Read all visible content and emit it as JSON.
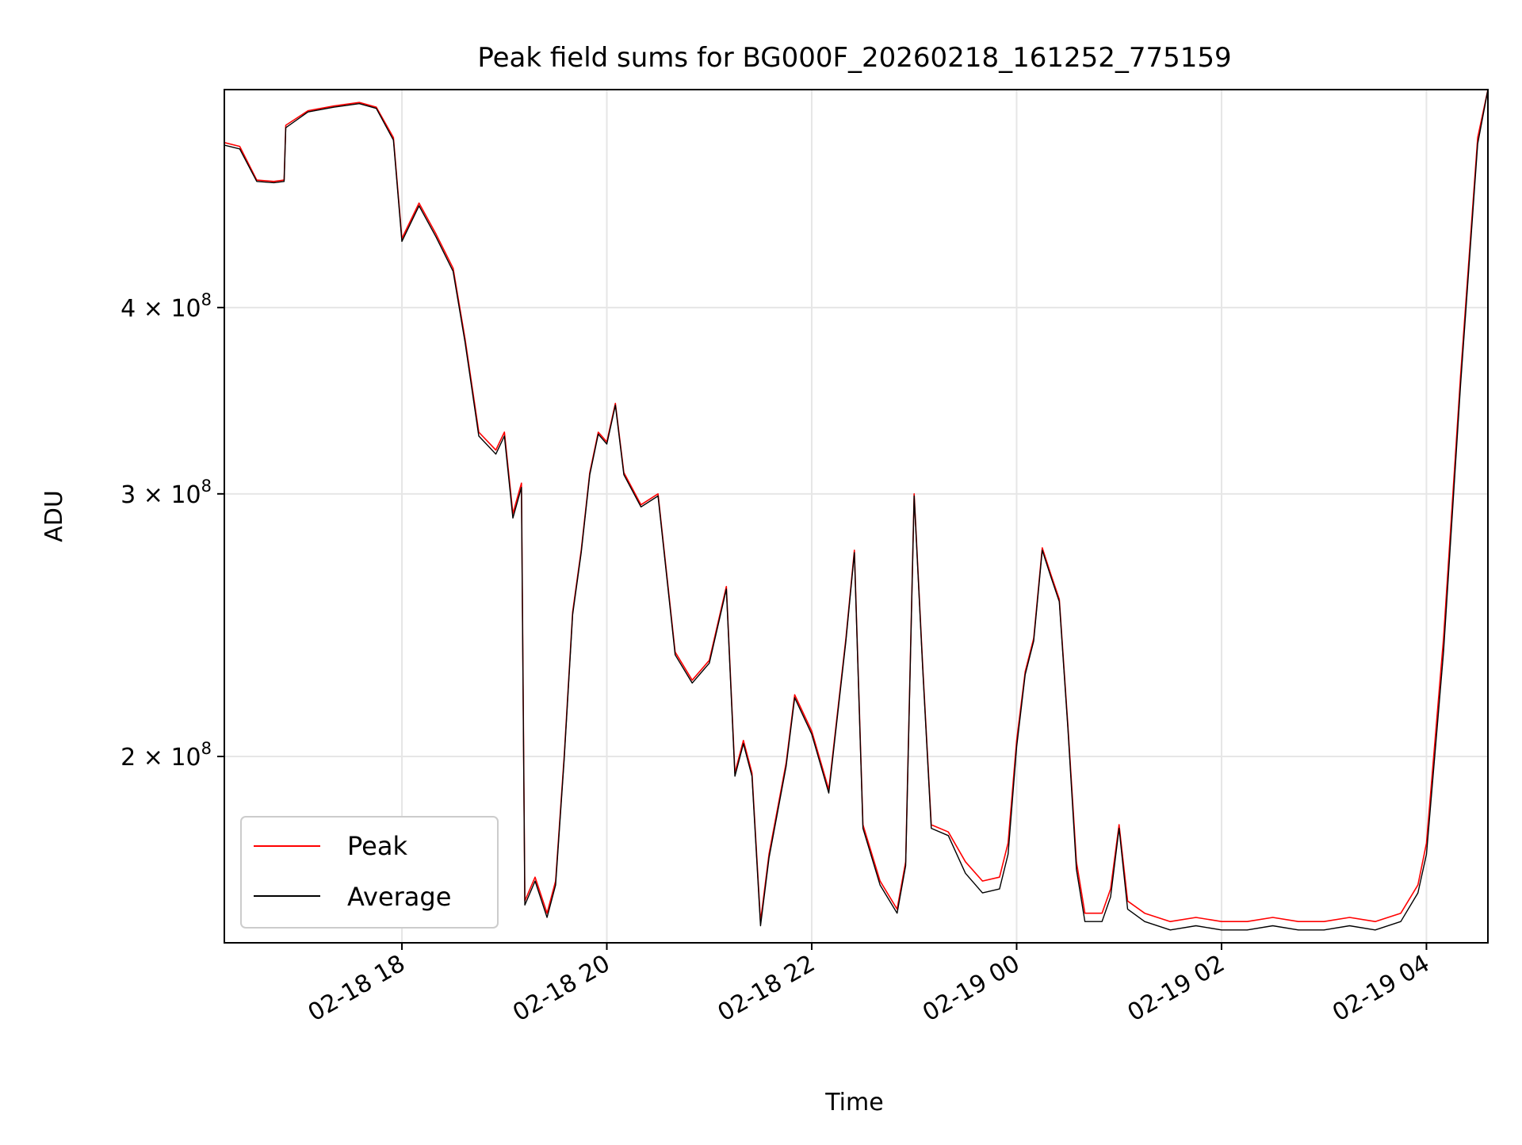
{
  "chart_data": {
    "type": "line",
    "title": "Peak field sums for BG000F_20260218_161252_775159",
    "xlabel": "Time",
    "ylabel": "ADU",
    "y_scale": "log",
    "xlim": [
      "2026-02-18 16:16",
      "2026-02-19 04:36"
    ],
    "ylim": [
      150000000,
      560000000
    ],
    "x_ticks": [
      {
        "t": "2026-02-18 18:00",
        "label": "02-18 18"
      },
      {
        "t": "2026-02-18 20:00",
        "label": "02-18 20"
      },
      {
        "t": "2026-02-18 22:00",
        "label": "02-18 22"
      },
      {
        "t": "2026-02-19 00:00",
        "label": "02-19 00"
      },
      {
        "t": "2026-02-19 02:00",
        "label": "02-19 02"
      },
      {
        "t": "2026-02-19 04:00",
        "label": "02-19 04"
      }
    ],
    "y_ticks": [
      {
        "value": 200000000,
        "base": "2",
        "exp": "8"
      },
      {
        "value": 300000000,
        "base": "3",
        "exp": "8"
      },
      {
        "value": 400000000,
        "base": "4",
        "exp": "8"
      }
    ],
    "grid": true,
    "legend": {
      "placement": "lower-left"
    },
    "series": [
      {
        "name": "Peak",
        "color": "#ff0000",
        "points": [
          [
            "2026-02-18 16:16",
            516000000
          ],
          [
            "2026-02-18 16:25",
            513000000
          ],
          [
            "2026-02-18 16:35",
            487000000
          ],
          [
            "2026-02-18 16:45",
            486000000
          ],
          [
            "2026-02-18 16:51",
            487000000
          ],
          [
            "2026-02-18 16:52",
            530000000
          ],
          [
            "2026-02-18 17:05",
            542000000
          ],
          [
            "2026-02-18 17:20",
            546000000
          ],
          [
            "2026-02-18 17:35",
            549000000
          ],
          [
            "2026-02-18 17:45",
            545000000
          ],
          [
            "2026-02-18 17:55",
            520000000
          ],
          [
            "2026-02-18 18:00",
            445000000
          ],
          [
            "2026-02-18 18:10",
            470000000
          ],
          [
            "2026-02-18 18:20",
            448000000
          ],
          [
            "2026-02-18 18:30",
            425000000
          ],
          [
            "2026-02-18 18:37",
            381000000
          ],
          [
            "2026-02-18 18:45",
            330000000
          ],
          [
            "2026-02-18 18:55",
            321000000
          ],
          [
            "2026-02-18 19:00",
            330000000
          ],
          [
            "2026-02-18 19:05",
            291000000
          ],
          [
            "2026-02-18 19:10",
            305000000
          ],
          [
            "2026-02-18 19:12",
            160000000
          ],
          [
            "2026-02-18 19:18",
            166000000
          ],
          [
            "2026-02-18 19:25",
            157000000
          ],
          [
            "2026-02-18 19:30",
            165000000
          ],
          [
            "2026-02-18 19:35",
            200000000
          ],
          [
            "2026-02-18 19:40",
            250000000
          ],
          [
            "2026-02-18 19:45",
            275000000
          ],
          [
            "2026-02-18 19:50",
            310000000
          ],
          [
            "2026-02-18 19:55",
            330000000
          ],
          [
            "2026-02-18 20:00",
            325000000
          ],
          [
            "2026-02-18 20:05",
            345000000
          ],
          [
            "2026-02-18 20:10",
            310000000
          ],
          [
            "2026-02-18 20:20",
            295000000
          ],
          [
            "2026-02-18 20:30",
            300000000
          ],
          [
            "2026-02-18 20:40",
            235000000
          ],
          [
            "2026-02-18 20:50",
            225000000
          ],
          [
            "2026-02-18 21:00",
            232000000
          ],
          [
            "2026-02-18 21:10",
            260000000
          ],
          [
            "2026-02-18 21:15",
            195000000
          ],
          [
            "2026-02-18 21:20",
            205000000
          ],
          [
            "2026-02-18 21:25",
            195000000
          ],
          [
            "2026-02-18 21:30",
            155000000
          ],
          [
            "2026-02-18 21:35",
            172000000
          ],
          [
            "2026-02-18 21:45",
            198000000
          ],
          [
            "2026-02-18 21:50",
            220000000
          ],
          [
            "2026-02-18 22:00",
            208000000
          ],
          [
            "2026-02-18 22:10",
            190000000
          ],
          [
            "2026-02-18 22:20",
            240000000
          ],
          [
            "2026-02-18 22:25",
            275000000
          ],
          [
            "2026-02-18 22:30",
            180000000
          ],
          [
            "2026-02-18 22:40",
            165000000
          ],
          [
            "2026-02-18 22:50",
            158000000
          ],
          [
            "2026-02-18 22:55",
            170000000
          ],
          [
            "2026-02-18 23:00",
            300000000
          ],
          [
            "2026-02-18 23:05",
            230000000
          ],
          [
            "2026-02-18 23:10",
            180000000
          ],
          [
            "2026-02-18 23:20",
            178000000
          ],
          [
            "2026-02-18 23:30",
            170000000
          ],
          [
            "2026-02-18 23:40",
            165000000
          ],
          [
            "2026-02-18 23:50",
            166000000
          ],
          [
            "2026-02-18 23:55",
            175000000
          ],
          [
            "2026-02-19 00:00",
            205000000
          ],
          [
            "2026-02-19 00:05",
            228000000
          ],
          [
            "2026-02-19 00:10",
            240000000
          ],
          [
            "2026-02-19 00:15",
            276000000
          ],
          [
            "2026-02-19 00:20",
            265000000
          ],
          [
            "2026-02-19 00:25",
            255000000
          ],
          [
            "2026-02-19 00:30",
            210000000
          ],
          [
            "2026-02-19 00:35",
            170000000
          ],
          [
            "2026-02-19 00:40",
            157000000
          ],
          [
            "2026-02-19 00:50",
            157000000
          ],
          [
            "2026-02-19 00:55",
            163000000
          ],
          [
            "2026-02-19 01:00",
            180000000
          ],
          [
            "2026-02-19 01:05",
            160000000
          ],
          [
            "2026-02-19 01:15",
            157000000
          ],
          [
            "2026-02-19 01:30",
            155000000
          ],
          [
            "2026-02-19 01:45",
            156000000
          ],
          [
            "2026-02-19 02:00",
            155000000
          ],
          [
            "2026-02-19 02:15",
            155000000
          ],
          [
            "2026-02-19 02:30",
            156000000
          ],
          [
            "2026-02-19 02:45",
            155000000
          ],
          [
            "2026-02-19 03:00",
            155000000
          ],
          [
            "2026-02-19 03:15",
            156000000
          ],
          [
            "2026-02-19 03:30",
            155000000
          ],
          [
            "2026-02-19 03:45",
            157000000
          ],
          [
            "2026-02-19 03:55",
            164000000
          ],
          [
            "2026-02-19 04:00",
            175000000
          ],
          [
            "2026-02-19 04:10",
            240000000
          ],
          [
            "2026-02-19 04:20",
            360000000
          ],
          [
            "2026-02-19 04:30",
            520000000
          ],
          [
            "2026-02-19 04:36",
            560000000
          ]
        ]
      },
      {
        "name": "Average",
        "color": "#000000",
        "points": [
          [
            "2026-02-18 16:16",
            514000000
          ],
          [
            "2026-02-18 16:25",
            511000000
          ],
          [
            "2026-02-18 16:35",
            486000000
          ],
          [
            "2026-02-18 16:45",
            485000000
          ],
          [
            "2026-02-18 16:51",
            486000000
          ],
          [
            "2026-02-18 16:52",
            528000000
          ],
          [
            "2026-02-18 17:05",
            541000000
          ],
          [
            "2026-02-18 17:20",
            545000000
          ],
          [
            "2026-02-18 17:35",
            548000000
          ],
          [
            "2026-02-18 17:45",
            544000000
          ],
          [
            "2026-02-18 17:55",
            518000000
          ],
          [
            "2026-02-18 18:00",
            443000000
          ],
          [
            "2026-02-18 18:10",
            468000000
          ],
          [
            "2026-02-18 18:20",
            446000000
          ],
          [
            "2026-02-18 18:30",
            423000000
          ],
          [
            "2026-02-18 18:37",
            379000000
          ],
          [
            "2026-02-18 18:45",
            328000000
          ],
          [
            "2026-02-18 18:55",
            319000000
          ],
          [
            "2026-02-18 19:00",
            328000000
          ],
          [
            "2026-02-18 19:05",
            289000000
          ],
          [
            "2026-02-18 19:10",
            303000000
          ],
          [
            "2026-02-18 19:12",
            159000000
          ],
          [
            "2026-02-18 19:18",
            165000000
          ],
          [
            "2026-02-18 19:25",
            156000000
          ],
          [
            "2026-02-18 19:30",
            164000000
          ],
          [
            "2026-02-18 19:35",
            199000000
          ],
          [
            "2026-02-18 19:40",
            249000000
          ],
          [
            "2026-02-18 19:45",
            274000000
          ],
          [
            "2026-02-18 19:50",
            309000000
          ],
          [
            "2026-02-18 19:55",
            329000000
          ],
          [
            "2026-02-18 20:00",
            324000000
          ],
          [
            "2026-02-18 20:05",
            344000000
          ],
          [
            "2026-02-18 20:10",
            309000000
          ],
          [
            "2026-02-18 20:20",
            294000000
          ],
          [
            "2026-02-18 20:30",
            299000000
          ],
          [
            "2026-02-18 20:40",
            234000000
          ],
          [
            "2026-02-18 20:50",
            224000000
          ],
          [
            "2026-02-18 21:00",
            231000000
          ],
          [
            "2026-02-18 21:10",
            259000000
          ],
          [
            "2026-02-18 21:15",
            194000000
          ],
          [
            "2026-02-18 21:20",
            204000000
          ],
          [
            "2026-02-18 21:25",
            194000000
          ],
          [
            "2026-02-18 21:30",
            154000000
          ],
          [
            "2026-02-18 21:35",
            171000000
          ],
          [
            "2026-02-18 21:45",
            197000000
          ],
          [
            "2026-02-18 21:50",
            219000000
          ],
          [
            "2026-02-18 22:00",
            207000000
          ],
          [
            "2026-02-18 22:10",
            189000000
          ],
          [
            "2026-02-18 22:20",
            239000000
          ],
          [
            "2026-02-18 22:25",
            274000000
          ],
          [
            "2026-02-18 22:30",
            179000000
          ],
          [
            "2026-02-18 22:40",
            164000000
          ],
          [
            "2026-02-18 22:50",
            157000000
          ],
          [
            "2026-02-18 22:55",
            169000000
          ],
          [
            "2026-02-18 23:00",
            299000000
          ],
          [
            "2026-02-18 23:05",
            229000000
          ],
          [
            "2026-02-18 23:10",
            179000000
          ],
          [
            "2026-02-18 23:20",
            177000000
          ],
          [
            "2026-02-18 23:30",
            167000000
          ],
          [
            "2026-02-18 23:40",
            162000000
          ],
          [
            "2026-02-18 23:50",
            163000000
          ],
          [
            "2026-02-18 23:55",
            172000000
          ],
          [
            "2026-02-19 00:00",
            203000000
          ],
          [
            "2026-02-19 00:05",
            227000000
          ],
          [
            "2026-02-19 00:10",
            239000000
          ],
          [
            "2026-02-19 00:15",
            275000000
          ],
          [
            "2026-02-19 00:20",
            264000000
          ],
          [
            "2026-02-19 00:25",
            254000000
          ],
          [
            "2026-02-19 00:30",
            209000000
          ],
          [
            "2026-02-19 00:35",
            168000000
          ],
          [
            "2026-02-19 00:40",
            155000000
          ],
          [
            "2026-02-19 00:50",
            155000000
          ],
          [
            "2026-02-19 00:55",
            161000000
          ],
          [
            "2026-02-19 01:00",
            179000000
          ],
          [
            "2026-02-19 01:05",
            158000000
          ],
          [
            "2026-02-19 01:15",
            155000000
          ],
          [
            "2026-02-19 01:30",
            153000000
          ],
          [
            "2026-02-19 01:45",
            154000000
          ],
          [
            "2026-02-19 02:00",
            153000000
          ],
          [
            "2026-02-19 02:15",
            153000000
          ],
          [
            "2026-02-19 02:30",
            154000000
          ],
          [
            "2026-02-19 02:45",
            153000000
          ],
          [
            "2026-02-19 03:00",
            153000000
          ],
          [
            "2026-02-19 03:15",
            154000000
          ],
          [
            "2026-02-19 03:30",
            153000000
          ],
          [
            "2026-02-19 03:45",
            155000000
          ],
          [
            "2026-02-19 03:55",
            162000000
          ],
          [
            "2026-02-19 04:00",
            172000000
          ],
          [
            "2026-02-19 04:10",
            235000000
          ],
          [
            "2026-02-19 04:20",
            355000000
          ],
          [
            "2026-02-19 04:30",
            515000000
          ],
          [
            "2026-02-19 04:36",
            560000000
          ]
        ]
      }
    ]
  }
}
